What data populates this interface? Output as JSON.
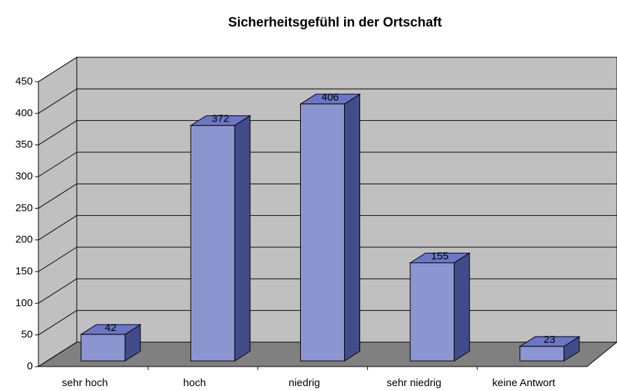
{
  "chart_data": {
    "type": "bar3d",
    "title": "Sicherheitsgefühl in der Ortschaft",
    "categories": [
      "sehr hoch",
      "hoch",
      "niedrig",
      "sehr niedrig",
      "keine Antwort"
    ],
    "values": [
      42,
      372,
      406,
      155,
      23
    ],
    "color": "#8b95cf",
    "ylim": [
      0,
      450
    ],
    "yticks": [
      0,
      50,
      100,
      150,
      200,
      250,
      300,
      350,
      400,
      450
    ],
    "grid": true
  }
}
